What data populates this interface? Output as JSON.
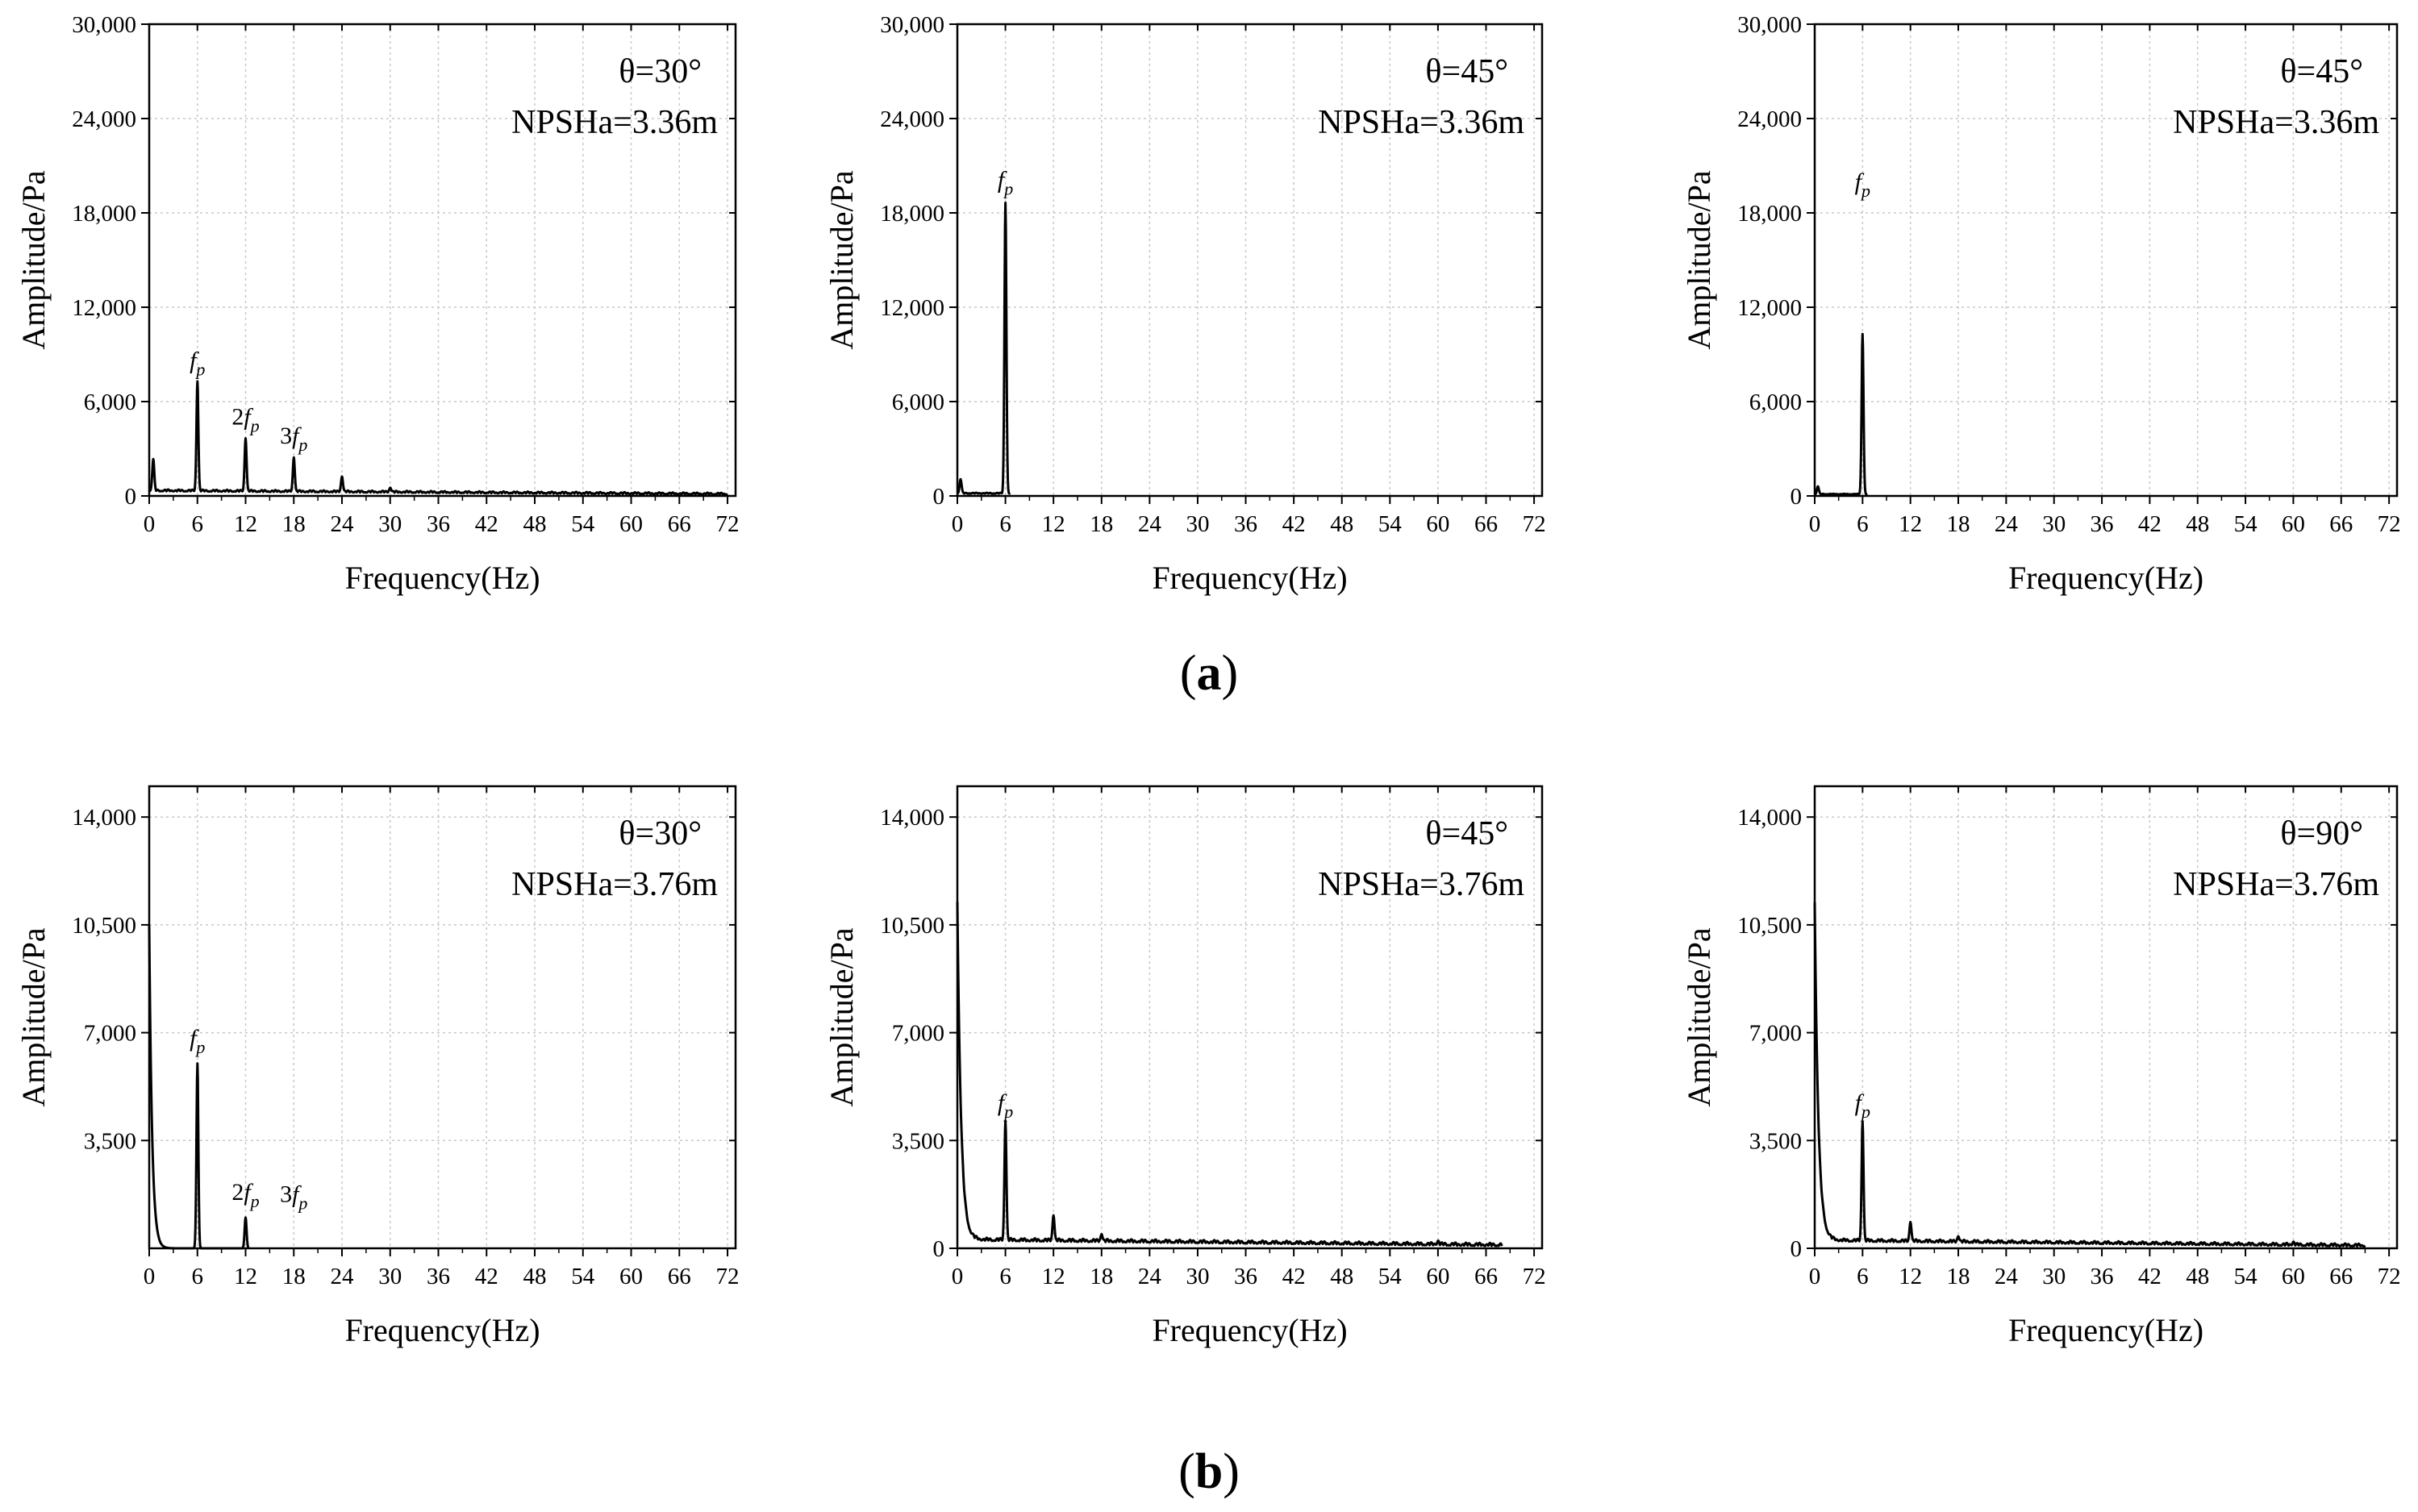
{
  "panels_caption": {
    "a": "a",
    "b": "b",
    "open": "(",
    "close": ")"
  },
  "chart_data": [
    {
      "id": "a1",
      "type": "line",
      "annotation": [
        "θ=30°",
        "NPSHa=3.36m"
      ],
      "xlabel": "Frequency(Hz)",
      "ylabel": "Amplitude/Pa",
      "xlim": [
        0,
        73
      ],
      "ylim": [
        0,
        30000
      ],
      "xticks": [
        0,
        6,
        12,
        18,
        24,
        30,
        36,
        42,
        48,
        54,
        60,
        66,
        72
      ],
      "yticks": [
        0,
        6000,
        12000,
        18000,
        24000,
        30000
      ],
      "ytick_labels": [
        "0",
        "6,000",
        "12,000",
        "18,000",
        "24,000",
        "30,000"
      ],
      "peaks": [
        {
          "x": 0.5,
          "y": 2000
        },
        {
          "x": 6,
          "y": 7000
        },
        {
          "x": 12,
          "y": 3400
        },
        {
          "x": 18,
          "y": 2200
        },
        {
          "x": 24,
          "y": 1000
        },
        {
          "x": 30,
          "y": 300
        }
      ],
      "baseline": {
        "start": 300,
        "end": 80
      },
      "peak_labels": [
        {
          "x": 6,
          "coef": "",
          "sub": "p",
          "text": "f"
        },
        {
          "x": 12,
          "coef": "2",
          "sub": "p",
          "text": "f"
        },
        {
          "x": 18,
          "coef": "3",
          "sub": "p",
          "text": "f"
        }
      ],
      "x_end": 72
    },
    {
      "id": "a2",
      "type": "line",
      "annotation": [
        "θ=45°",
        "NPSHa=3.36m"
      ],
      "xlabel": "Frequency(Hz)",
      "ylabel": "Amplitude/Pa",
      "xlim": [
        0,
        73
      ],
      "ylim": [
        0,
        30000
      ],
      "xticks": [
        0,
        6,
        12,
        18,
        24,
        30,
        36,
        42,
        48,
        54,
        60,
        66,
        72
      ],
      "yticks": [
        0,
        6000,
        12000,
        18000,
        24000,
        30000
      ],
      "ytick_labels": [
        "0",
        "6,000",
        "12,000",
        "18,000",
        "24,000",
        "30,000"
      ],
      "peaks": [
        {
          "x": 0.4,
          "y": 900
        },
        {
          "x": 6,
          "y": 18500
        }
      ],
      "baseline": {
        "start": 150,
        "end": 50
      },
      "peak_labels": [
        {
          "x": 6,
          "coef": "",
          "sub": "p",
          "text": "f"
        }
      ],
      "x_end": 6.6
    },
    {
      "id": "a3",
      "type": "line",
      "annotation": [
        "θ=45°",
        "NPSHa=3.36m"
      ],
      "xlabel": "Frequency(Hz)",
      "ylabel": "Amplitude/Pa",
      "xlim": [
        0,
        73
      ],
      "ylim": [
        0,
        30000
      ],
      "xticks": [
        0,
        6,
        12,
        18,
        24,
        30,
        36,
        42,
        48,
        54,
        60,
        66,
        72
      ],
      "yticks": [
        0,
        6000,
        12000,
        18000,
        24000,
        30000
      ],
      "ytick_labels": [
        "0",
        "6,000",
        "12,000",
        "18,000",
        "24,000",
        "30,000"
      ],
      "peaks": [
        {
          "x": 0.4,
          "y": 500
        },
        {
          "x": 6,
          "y": 10200
        }
      ],
      "baseline": {
        "start": 100,
        "end": 40
      },
      "peak_labels": [
        {
          "x": 6,
          "coef": "",
          "sub": "p",
          "text": "f"
        }
      ],
      "x_end": 6.6
    },
    {
      "id": "b1",
      "type": "line",
      "annotation": [
        "θ=30°",
        "NPSHa=3.76m"
      ],
      "xlabel": "Frequency(Hz)",
      "ylabel": "Amplitude/Pa",
      "xlim": [
        0,
        73
      ],
      "ylim": [
        0,
        15000
      ],
      "xticks": [
        0,
        6,
        12,
        18,
        24,
        30,
        36,
        42,
        48,
        54,
        60,
        66,
        72
      ],
      "yticks": [
        3500,
        7000,
        10500,
        14000
      ],
      "ytick_labels": [
        "3,500",
        "7,000",
        "10,500",
        "14,000"
      ],
      "decay": {
        "y0": 10500,
        "tau": 0.35
      },
      "peaks": [
        {
          "x": 6,
          "y": 6000
        },
        {
          "x": 12,
          "y": 1000
        }
      ],
      "baseline": {
        "start": 0,
        "end": 0
      },
      "peak_labels": [
        {
          "x": 6,
          "coef": "",
          "sub": "p",
          "text": "f"
        },
        {
          "x": 12,
          "coef": "2",
          "sub": "p",
          "text": "f"
        },
        {
          "x": 18,
          "coef": "3",
          "sub": "p",
          "text": "f"
        }
      ],
      "x_end": 12.4
    },
    {
      "id": "b2",
      "type": "line",
      "annotation": [
        "θ=45°",
        "NPSHa=3.76m"
      ],
      "xlabel": "Frequency(Hz)",
      "ylabel": "Amplitude/Pa",
      "xlim": [
        0,
        73
      ],
      "ylim": [
        0,
        15000
      ],
      "xticks": [
        0,
        6,
        12,
        18,
        24,
        30,
        36,
        42,
        48,
        54,
        60,
        66,
        72
      ],
      "yticks": [
        0,
        3500,
        7000,
        10500,
        14000
      ],
      "ytick_labels": [
        "0",
        "3,500",
        "7,000",
        "10,500",
        "14,000"
      ],
      "decay": {
        "y0": 11000,
        "tau": 0.45
      },
      "peaks": [
        {
          "x": 6,
          "y": 3900
        },
        {
          "x": 12,
          "y": 850
        },
        {
          "x": 18,
          "y": 250
        },
        {
          "x": 60,
          "y": 120
        }
      ],
      "baseline": {
        "start": 250,
        "end": 60
      },
      "peak_labels": [
        {
          "x": 6,
          "coef": "",
          "sub": "p",
          "text": "f"
        }
      ],
      "x_end": 68
    },
    {
      "id": "b3",
      "type": "line",
      "annotation": [
        "θ=90°",
        "NPSHa=3.76m"
      ],
      "xlabel": "Frequency(Hz)",
      "ylabel": "Amplitude/Pa",
      "xlim": [
        0,
        73
      ],
      "ylim": [
        0,
        15000
      ],
      "xticks": [
        0,
        6,
        12,
        18,
        24,
        30,
        36,
        42,
        48,
        54,
        60,
        66,
        72
      ],
      "yticks": [
        0,
        3500,
        7000,
        10500,
        14000
      ],
      "ytick_labels": [
        "0",
        "3,500",
        "7,000",
        "10,500",
        "14,000"
      ],
      "decay": {
        "y0": 11000,
        "tau": 0.45
      },
      "peaks": [
        {
          "x": 6,
          "y": 3900
        },
        {
          "x": 12,
          "y": 650
        },
        {
          "x": 18,
          "y": 200
        },
        {
          "x": 60,
          "y": 100
        }
      ],
      "baseline": {
        "start": 230,
        "end": 50
      },
      "peak_labels": [
        {
          "x": 6,
          "coef": "",
          "sub": "p",
          "text": "f"
        }
      ],
      "x_end": 69
    }
  ]
}
